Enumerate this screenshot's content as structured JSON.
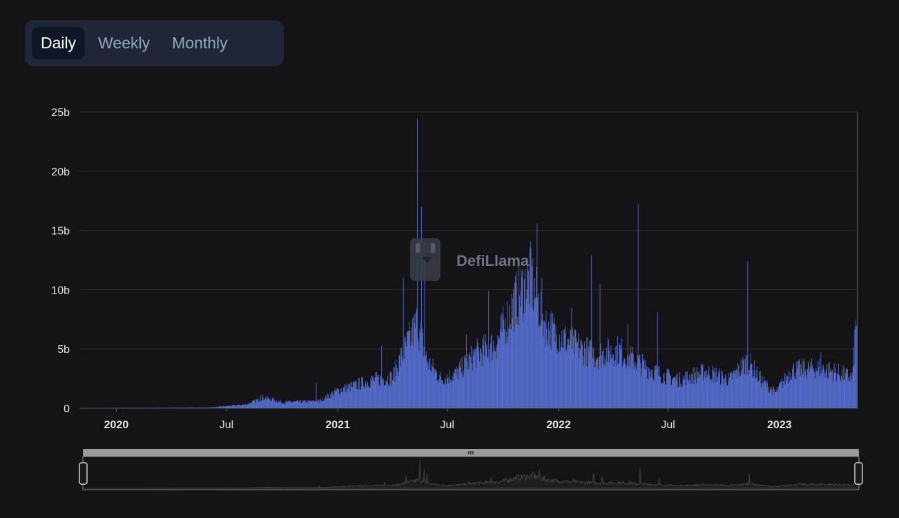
{
  "tabs": [
    "Daily",
    "Weekly",
    "Monthly"
  ],
  "active_tab": "Daily",
  "watermark": "DefiLlama",
  "colors": {
    "bar": "#5a72d8",
    "grid": "#3a2a2e",
    "background": "#141418"
  },
  "chart_data": {
    "type": "bar",
    "title": "",
    "xlabel": "",
    "ylabel": "",
    "x_range": [
      "2019-11-01",
      "2023-05-09"
    ],
    "ylim": [
      0,
      25
    ],
    "y_unit": "b",
    "y_ticks": [
      "0",
      "5b",
      "10b",
      "15b",
      "20b",
      "25b"
    ],
    "x_ticks": [
      {
        "date": "2020-01-01",
        "label": "2020",
        "bold": true
      },
      {
        "date": "2020-07-01",
        "label": "Jul",
        "bold": false
      },
      {
        "date": "2021-01-01",
        "label": "2021",
        "bold": true
      },
      {
        "date": "2021-07-01",
        "label": "Jul",
        "bold": false
      },
      {
        "date": "2022-01-01",
        "label": "2022",
        "bold": true
      },
      {
        "date": "2022-07-01",
        "label": "Jul",
        "bold": false
      },
      {
        "date": "2023-01-01",
        "label": "2023",
        "bold": true
      }
    ],
    "grid": true,
    "series": [
      {
        "values_trend": [
          [
            "2019-11-01",
            0.0
          ],
          [
            "2020-06-01",
            0.05
          ],
          [
            "2020-08-01",
            0.3
          ],
          [
            "2020-09-01",
            0.9
          ],
          [
            "2020-10-01",
            0.5
          ],
          [
            "2020-12-01",
            0.6
          ],
          [
            "2021-01-01",
            1.5
          ],
          [
            "2021-03-01",
            2.4
          ],
          [
            "2021-04-01",
            2.6
          ],
          [
            "2021-04-20",
            4.8
          ],
          [
            "2021-05-12",
            7.2
          ],
          [
            "2021-05-28",
            4.0
          ],
          [
            "2021-06-20",
            2.5
          ],
          [
            "2021-07-15",
            2.9
          ],
          [
            "2021-08-15",
            4.5
          ],
          [
            "2021-09-20",
            5.5
          ],
          [
            "2021-10-20",
            9.0
          ],
          [
            "2021-11-15",
            11.0
          ],
          [
            "2021-12-10",
            7.0
          ],
          [
            "2022-01-20",
            5.5
          ],
          [
            "2022-03-01",
            4.5
          ],
          [
            "2022-04-10",
            4.9
          ],
          [
            "2022-05-20",
            3.6
          ],
          [
            "2022-06-20",
            2.8
          ],
          [
            "2022-07-20",
            2.4
          ],
          [
            "2022-09-01",
            3.1
          ],
          [
            "2022-10-10",
            2.4
          ],
          [
            "2022-11-09",
            4.0
          ],
          [
            "2022-12-01",
            2.4
          ],
          [
            "2022-12-25",
            1.3
          ],
          [
            "2023-01-20",
            3.2
          ],
          [
            "2023-03-10",
            3.4
          ],
          [
            "2023-05-01",
            2.6
          ],
          [
            "2023-05-09",
            8.5
          ]
        ],
        "spikes": [
          [
            "2020-08-26",
            1.1
          ],
          [
            "2020-11-26",
            2.2
          ],
          [
            "2021-03-14",
            5.3
          ],
          [
            "2021-04-19",
            11.0
          ],
          [
            "2021-05-12",
            24.4
          ],
          [
            "2021-05-19",
            17.0
          ],
          [
            "2021-05-24",
            12.5
          ],
          [
            "2021-08-01",
            6.2
          ],
          [
            "2021-09-07",
            9.9
          ],
          [
            "2021-11-16",
            13.5
          ],
          [
            "2021-11-26",
            15.6
          ],
          [
            "2021-12-04",
            11.0
          ],
          [
            "2022-01-22",
            8.5
          ],
          [
            "2022-02-24",
            12.9
          ],
          [
            "2022-03-10",
            10.5
          ],
          [
            "2022-04-25",
            7.1
          ],
          [
            "2022-05-12",
            17.2
          ],
          [
            "2022-06-13",
            8.1
          ],
          [
            "2022-11-09",
            12.4
          ],
          [
            "2023-03-10",
            4.7
          ],
          [
            "2023-05-09",
            25.0
          ]
        ]
      }
    ]
  }
}
